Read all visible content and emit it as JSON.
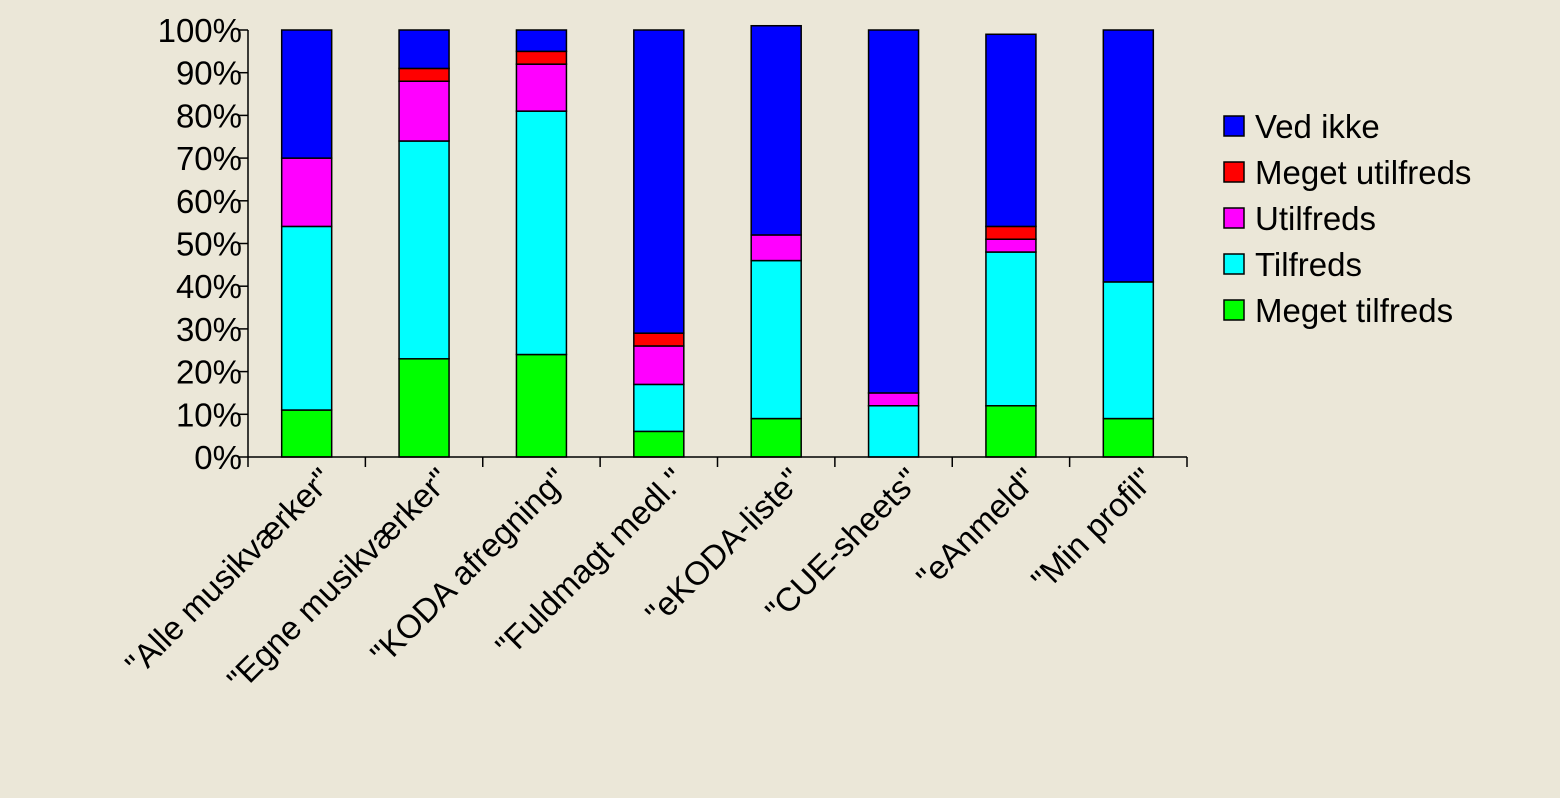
{
  "chart_data": {
    "type": "bar",
    "stacked": true,
    "title": "",
    "xlabel": "",
    "ylabel": "",
    "ylim": [
      0,
      100
    ],
    "yticks": [
      "0%",
      "10%",
      "20%",
      "30%",
      "40%",
      "50%",
      "60%",
      "70%",
      "80%",
      "90%",
      "100%"
    ],
    "grid": false,
    "legend_position": "right",
    "categories": [
      "\"Alle musikværker\"",
      "\"Egne musikværker\"",
      "\"KODA afregning\"",
      "\"Fuldmagt medl.\"",
      "\"eKODA-liste\"",
      "\"CUE-sheets\"",
      "\"eAnmeld\"",
      "\"Min profil\""
    ],
    "series": [
      {
        "name": "Meget tilfreds",
        "color": "#00FF00",
        "values": [
          11,
          23,
          24,
          6,
          9,
          0,
          12,
          9
        ]
      },
      {
        "name": "Tilfreds",
        "color": "#00FFFF",
        "values": [
          43,
          51,
          57,
          11,
          37,
          12,
          36,
          32
        ]
      },
      {
        "name": "Utilfreds",
        "color": "#FF00FF",
        "values": [
          16,
          14,
          11,
          9,
          6,
          3,
          3,
          0
        ]
      },
      {
        "name": "Meget utilfreds",
        "color": "#FF0000",
        "values": [
          0,
          3,
          3,
          3,
          0,
          0,
          3,
          0
        ]
      },
      {
        "name": "Ved ikke",
        "color": "#0000FF",
        "values": [
          30,
          9,
          5,
          71,
          49,
          85,
          45,
          59
        ]
      }
    ],
    "legend_order": [
      "Ved ikke",
      "Meget utilfreds",
      "Utilfreds",
      "Tilfreds",
      "Meget tilfreds"
    ]
  }
}
